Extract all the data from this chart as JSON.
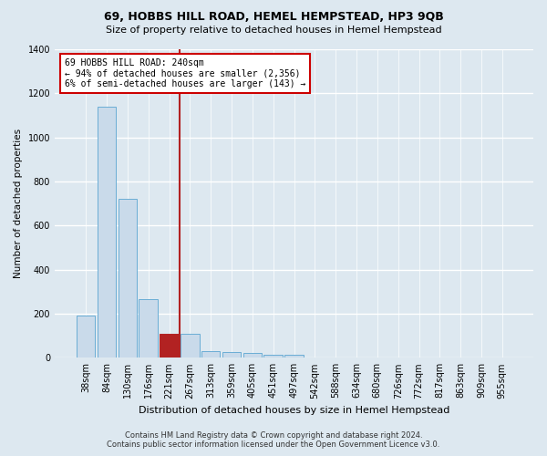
{
  "title": "69, HOBBS HILL ROAD, HEMEL HEMPSTEAD, HP3 9QB",
  "subtitle": "Size of property relative to detached houses in Hemel Hempstead",
  "xlabel": "Distribution of detached houses by size in Hemel Hempstead",
  "ylabel": "Number of detached properties",
  "footer_line1": "Contains HM Land Registry data © Crown copyright and database right 2024.",
  "footer_line2": "Contains public sector information licensed under the Open Government Licence v3.0.",
  "bin_labels": [
    "38sqm",
    "84sqm",
    "130sqm",
    "176sqm",
    "221sqm",
    "267sqm",
    "313sqm",
    "359sqm",
    "405sqm",
    "451sqm",
    "497sqm",
    "542sqm",
    "588sqm",
    "634sqm",
    "680sqm",
    "726sqm",
    "772sqm",
    "817sqm",
    "863sqm",
    "909sqm",
    "955sqm"
  ],
  "bar_values": [
    190,
    1140,
    720,
    265,
    110,
    110,
    30,
    25,
    20,
    15,
    15,
    0,
    0,
    0,
    0,
    0,
    0,
    0,
    0,
    0,
    0
  ],
  "bar_color": "#c9daea",
  "bar_edge_color": "#6aadd5",
  "highlight_bar_index": 4,
  "highlight_bar_color": "#b22222",
  "highlight_bar_edge_color": "#b22222",
  "vline_color": "#b22222",
  "vline_x": 4.5,
  "annotation_text": "69 HOBBS HILL ROAD: 240sqm\n← 94% of detached houses are smaller (2,356)\n6% of semi-detached houses are larger (143) →",
  "annotation_box_facecolor": "#ffffff",
  "annotation_box_edgecolor": "#cc0000",
  "ylim": [
    0,
    1400
  ],
  "yticks": [
    0,
    200,
    400,
    600,
    800,
    1000,
    1200,
    1400
  ],
  "bg_color": "#dde8f0",
  "plot_bg_color": "#dde8f0",
  "grid_color": "#ffffff",
  "title_fontsize": 9,
  "subtitle_fontsize": 8
}
